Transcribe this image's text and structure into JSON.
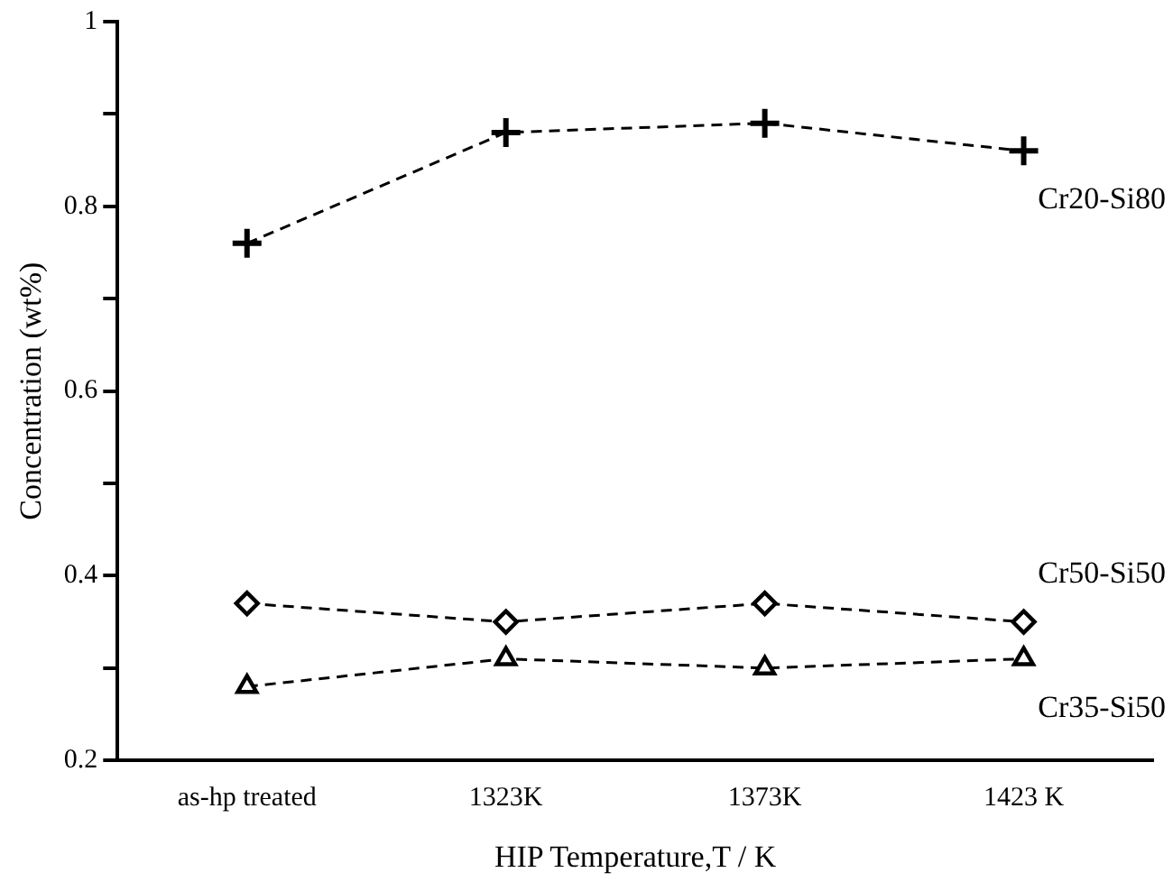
{
  "chart_data": {
    "type": "line",
    "xlabel": "HIP Temperature,T / K",
    "ylabel": "Concentration (wt%)",
    "categories": [
      "as-hp treated",
      "1323K",
      "1373K",
      "1423 K"
    ],
    "ylim": [
      0.2,
      1
    ],
    "yticks": [
      0.2,
      {
        "value": 0.3,
        "label": null
      },
      0.4,
      {
        "value": 0.5,
        "label": null
      },
      0.6,
      {
        "value": 0.7,
        "label": null
      },
      0.8,
      {
        "value": 0.9,
        "label": null
      },
      1
    ],
    "grid": false,
    "legend": false,
    "line_style": "dashed",
    "series": [
      {
        "name": "Cr20-Si80",
        "color": "#000000",
        "marker": "cross",
        "values": [
          0.76,
          0.88,
          0.89,
          0.86
        ]
      },
      {
        "name": "Cr50-Si50",
        "color": "#000000",
        "marker": "diamond",
        "values": [
          0.37,
          0.35,
          0.37,
          0.35
        ]
      },
      {
        "name": "Cr35-Si50",
        "color": "#000000",
        "marker": "triangle",
        "values": [
          0.28,
          0.31,
          0.3,
          0.31
        ]
      }
    ]
  }
}
